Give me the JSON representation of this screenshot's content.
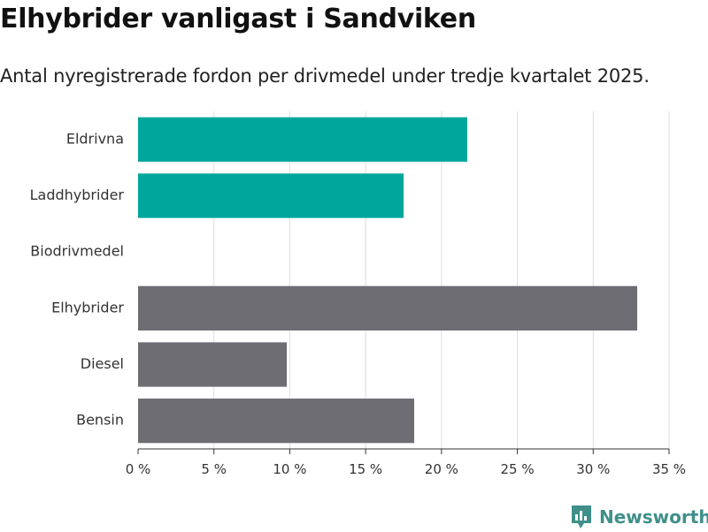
{
  "header": {
    "title": "Elhybrider vanligast i Sandviken",
    "subtitle": "Antal nyregistrerade fordon per drivmedel under tredje kvartalet 2025."
  },
  "brand": {
    "name": "Newsworthy",
    "color": "#3f8f8a",
    "icon": "newsworthy-chart-icon"
  },
  "colors": {
    "highlight": "#00a69c",
    "default": "#6e6d73",
    "grid": "#dddddd",
    "axis": "#333333"
  },
  "chart_data": {
    "type": "bar",
    "orientation": "horizontal",
    "title": "Elhybrider vanligast i Sandviken",
    "subtitle": "Antal nyregistrerade fordon per drivmedel under tredje kvartalet 2025.",
    "xlabel": "",
    "ylabel": "",
    "categories": [
      "Eldrivna",
      "Laddhybrider",
      "Biodrivmedel",
      "Elhybrider",
      "Diesel",
      "Bensin"
    ],
    "values": [
      21.7,
      17.5,
      0,
      32.9,
      9.8,
      18.2
    ],
    "highlighted": [
      true,
      true,
      true,
      false,
      false,
      false
    ],
    "unit": "%",
    "xlim": [
      0,
      35
    ],
    "ticks": [
      0,
      5,
      10,
      15,
      20,
      25,
      30,
      35
    ],
    "tick_labels": [
      "0 %",
      "5 %",
      "10 %",
      "15 %",
      "20 %",
      "25 %",
      "30 %",
      "35 %"
    ],
    "grid": true,
    "legend": "none"
  }
}
